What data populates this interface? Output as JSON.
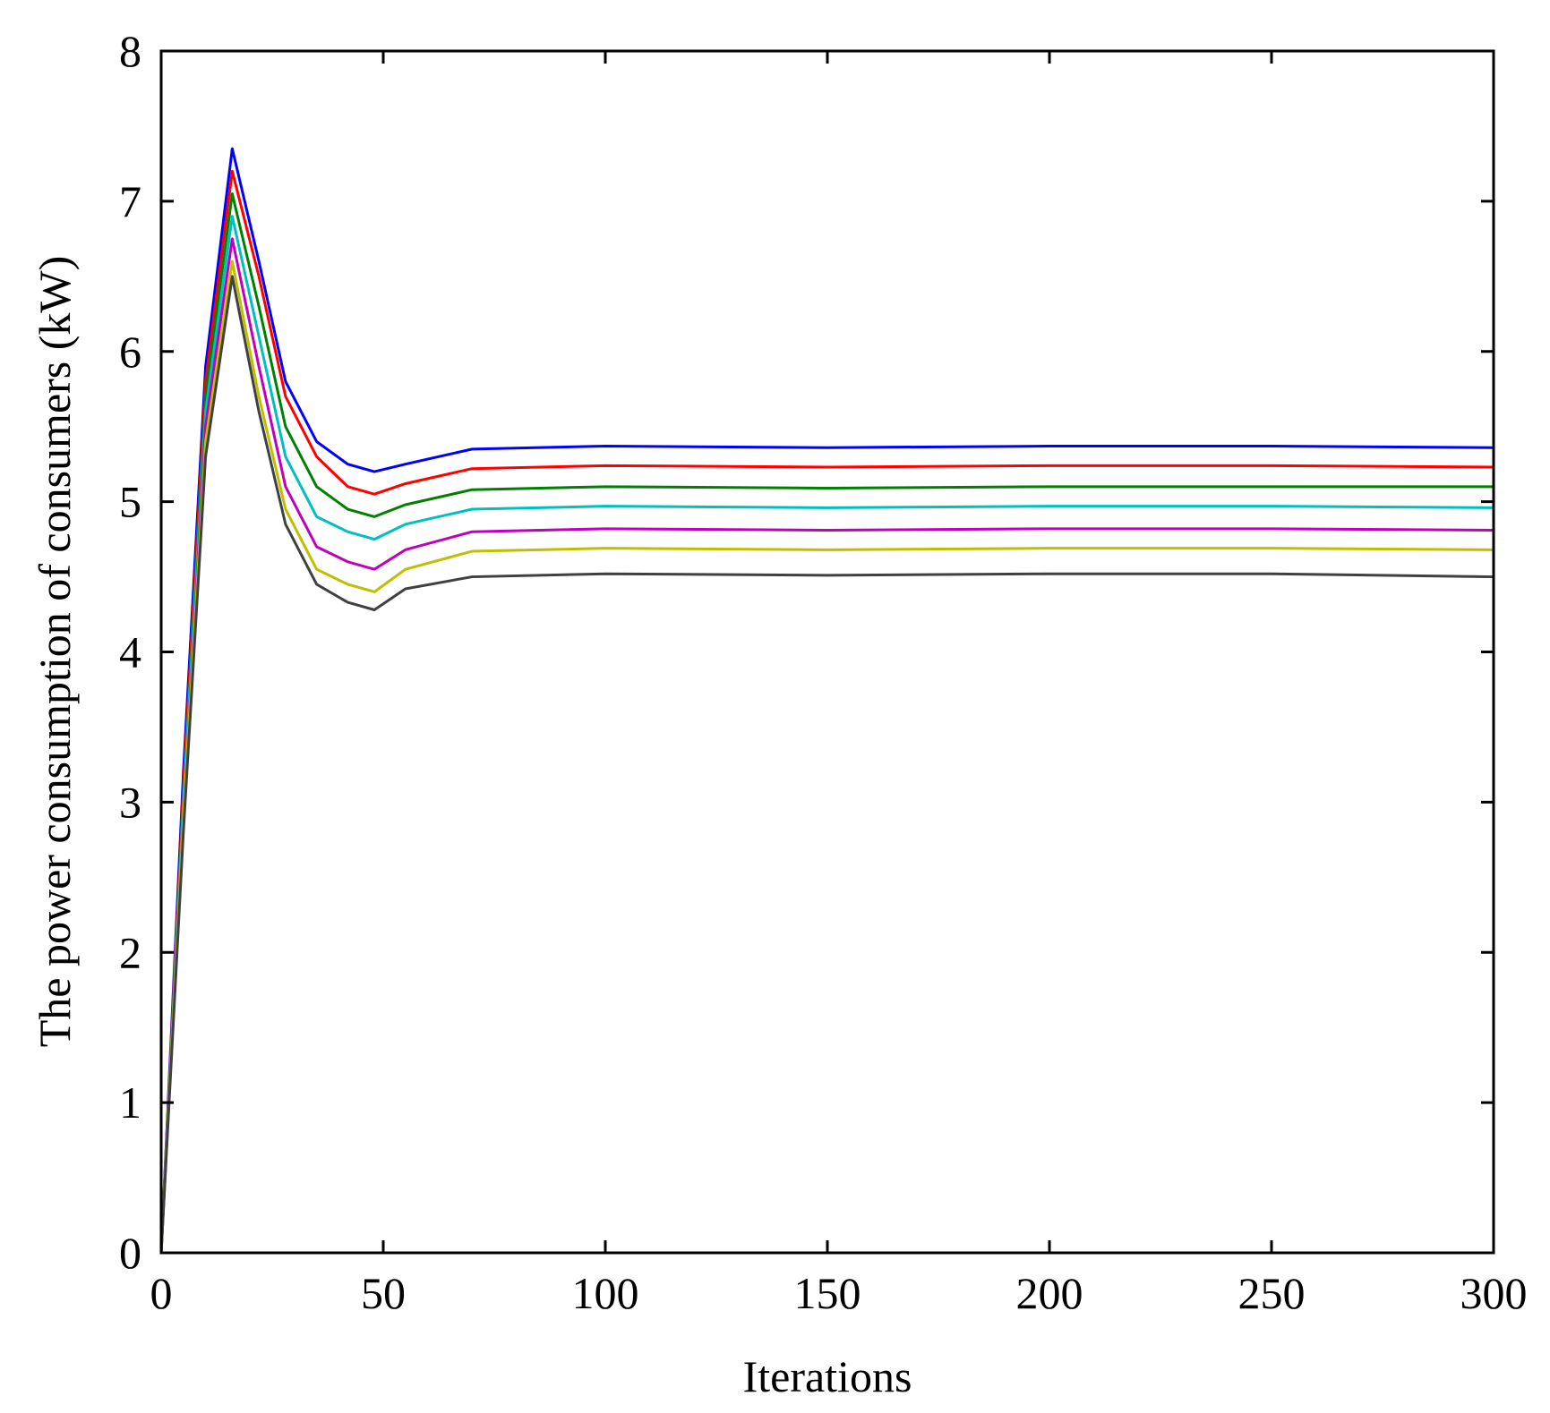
{
  "chart_data": {
    "type": "line",
    "title": "",
    "xlabel": "Iterations",
    "ylabel": "The power consumption of consumers (kW)",
    "xlim": [
      0,
      300
    ],
    "ylim": [
      0,
      8
    ],
    "xticks": [
      0,
      50,
      100,
      150,
      200,
      250,
      300
    ],
    "yticks": [
      0,
      1,
      2,
      3,
      4,
      5,
      6,
      7,
      8
    ],
    "grid": false,
    "legend": "none",
    "colors": [
      "#0000ff",
      "#ff0000",
      "#008000",
      "#00bfbf",
      "#bf00bf",
      "#bfbf00",
      "#404040"
    ],
    "series": [
      {
        "x": [
          0,
          5,
          10,
          16,
          22,
          28,
          35,
          42,
          48,
          55,
          70,
          100,
          150,
          200,
          250,
          300
        ],
        "values": [
          0,
          3.2,
          5.9,
          7.35,
          6.6,
          5.8,
          5.4,
          5.25,
          5.2,
          5.25,
          5.35,
          5.37,
          5.36,
          5.37,
          5.37,
          5.36
        ]
      },
      {
        "x": [
          0,
          5,
          10,
          16,
          22,
          28,
          35,
          42,
          48,
          55,
          70,
          100,
          150,
          200,
          250,
          300
        ],
        "values": [
          0,
          3.1,
          5.8,
          7.2,
          6.5,
          5.7,
          5.3,
          5.1,
          5.05,
          5.12,
          5.22,
          5.24,
          5.23,
          5.24,
          5.24,
          5.23
        ]
      },
      {
        "x": [
          0,
          5,
          10,
          16,
          22,
          28,
          35,
          42,
          48,
          55,
          70,
          100,
          150,
          200,
          250,
          300
        ],
        "values": [
          0,
          3.0,
          5.7,
          7.05,
          6.3,
          5.5,
          5.1,
          4.95,
          4.9,
          4.98,
          5.08,
          5.1,
          5.09,
          5.1,
          5.1,
          5.1
        ]
      },
      {
        "x": [
          0,
          5,
          10,
          16,
          22,
          28,
          35,
          42,
          48,
          55,
          70,
          100,
          150,
          200,
          250,
          300
        ],
        "values": [
          0,
          3.0,
          5.6,
          6.9,
          6.1,
          5.3,
          4.9,
          4.8,
          4.75,
          4.85,
          4.95,
          4.97,
          4.96,
          4.97,
          4.97,
          4.96
        ]
      },
      {
        "x": [
          0,
          5,
          10,
          16,
          22,
          28,
          35,
          42,
          48,
          55,
          70,
          100,
          150,
          200,
          250,
          300
        ],
        "values": [
          0,
          2.9,
          5.5,
          6.75,
          5.9,
          5.1,
          4.7,
          4.6,
          4.55,
          4.68,
          4.8,
          4.82,
          4.81,
          4.82,
          4.82,
          4.81
        ]
      },
      {
        "x": [
          0,
          5,
          10,
          16,
          22,
          28,
          35,
          42,
          48,
          55,
          70,
          100,
          150,
          200,
          250,
          300
        ],
        "values": [
          0,
          2.9,
          5.4,
          6.6,
          5.7,
          4.95,
          4.55,
          4.45,
          4.4,
          4.55,
          4.67,
          4.69,
          4.68,
          4.69,
          4.69,
          4.68
        ]
      },
      {
        "x": [
          0,
          5,
          10,
          16,
          22,
          28,
          35,
          42,
          48,
          55,
          70,
          100,
          150,
          200,
          250,
          300
        ],
        "values": [
          0,
          2.8,
          5.3,
          6.5,
          5.6,
          4.85,
          4.45,
          4.33,
          4.28,
          4.42,
          4.5,
          4.52,
          4.51,
          4.52,
          4.52,
          4.5
        ]
      }
    ]
  }
}
